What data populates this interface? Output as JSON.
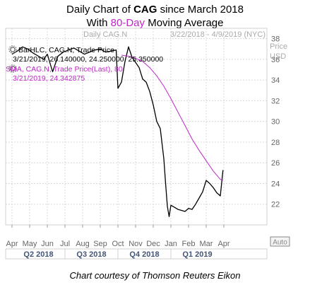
{
  "title": {
    "line1_pre": "Daily Chart of ",
    "line1_ticker": "CAG",
    "line1_post": " since March 2018",
    "line2_pre": "With ",
    "line2_ma": "80-Day",
    "line2_post": " Moving Average"
  },
  "caption": "Chart courtesy of Thomson Reuters Eikon",
  "colors": {
    "price": "#000000",
    "ma": "#c026c8",
    "grid": "#d8d8d8",
    "axis_text": "#666666",
    "quarter_text": "#445577",
    "header_text": "#aaaaaa"
  },
  "chart_data": {
    "type": "line",
    "header_left": "Daily CAG.N",
    "date_range": "3/22/2018 - 4/9/2019 (NYC)",
    "ylabel": "Price USD",
    "ylabel_lines": [
      "Price",
      "USD"
    ],
    "ylim": [
      20,
      39
    ],
    "yticks": [
      22,
      24,
      26,
      28,
      30,
      32,
      34,
      36,
      38
    ],
    "grid": true,
    "auto_label": "Auto",
    "months": [
      "Apr",
      "May",
      "Jun",
      "Jul",
      "Aug",
      "Sep",
      "Oct",
      "Nov",
      "Dec",
      "Jan",
      "Feb",
      "Mar",
      "Apr"
    ],
    "quarters": [
      "Q2 2018",
      "Q3 2018",
      "Q4 2018",
      "Q1 2019"
    ],
    "legend": [
      {
        "icon": "gear-icon",
        "series": "BarHLC, CAG.N, Trade Price",
        "values": "3/21/2019, 26.140000, 24.250000, 25.350000"
      },
      {
        "icon": "gear-icon",
        "series": "SMA, CAG.N, Trade Price(Last),  80",
        "values": "3/21/2019, 24.342875"
      }
    ],
    "series": [
      {
        "name": "BarHLC, CAG.N, Trade Price",
        "x": [
          0,
          0.3,
          0.6,
          0.9,
          1.2,
          1.5,
          1.8,
          2.0,
          2.3,
          2.6,
          2.9,
          3.2,
          3.5,
          3.8,
          4.1,
          4.4,
          4.7,
          5.0,
          5.3,
          5.6,
          5.9,
          6.0,
          6.2,
          6.4,
          6.6,
          6.8,
          7.0,
          7.2,
          7.4,
          7.6,
          7.8,
          8.0,
          8.2,
          8.4,
          8.6,
          8.7,
          8.8,
          8.9,
          9.0,
          9.2,
          9.4,
          9.6,
          9.8,
          10.0,
          10.2,
          10.4,
          10.6,
          10.8,
          11.0,
          11.2,
          11.4,
          11.6,
          11.8,
          11.95
        ],
        "values": [
          36.5,
          36.8,
          37.2,
          37.0,
          36.6,
          36.3,
          36.0,
          36.5,
          34.8,
          36.3,
          36.7,
          36.9,
          37.1,
          36.8,
          36.5,
          36.7,
          36.9,
          37.0,
          36.7,
          36.8,
          36.9,
          33.2,
          33.8,
          35.8,
          37.2,
          36.2,
          35.7,
          35.2,
          34.1,
          33.8,
          32.9,
          31.6,
          30.0,
          29.3,
          26.4,
          24.0,
          21.8,
          20.8,
          21.9,
          21.7,
          21.5,
          21.4,
          21.3,
          21.6,
          21.5,
          22.0,
          22.6,
          23.2,
          24.3,
          24.0,
          23.6,
          23.1,
          22.8,
          25.3
        ]
      },
      {
        "name": "SMA, CAG.N, Trade Price(Last),  80",
        "x": [
          6.2,
          6.6,
          7.0,
          7.4,
          7.8,
          8.2,
          8.6,
          9.0,
          9.4,
          9.8,
          10.2,
          10.6,
          11.0,
          11.4,
          11.8,
          11.95
        ],
        "values": [
          36.4,
          36.3,
          36.1,
          35.8,
          35.2,
          34.4,
          33.4,
          32.2,
          30.9,
          29.6,
          28.3,
          27.2,
          26.2,
          25.2,
          24.4,
          24.3
        ]
      }
    ]
  }
}
